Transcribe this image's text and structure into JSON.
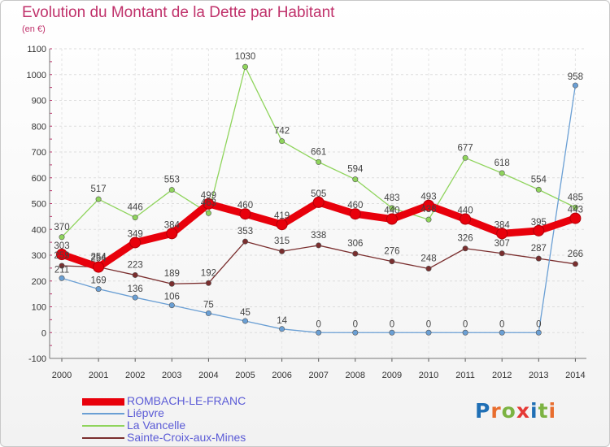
{
  "title": "Evolution du Montant de la Dette par Habitant",
  "subtitle": "(en €)",
  "logo": {
    "text": "Proxiti",
    "letter_colors": [
      "#1f6fb5",
      "#e86d2e",
      "#7cb342",
      "#e53935",
      "#1f6fb5",
      "#7cb342",
      "#e86d2e"
    ]
  },
  "chart_data": {
    "type": "line",
    "x": [
      "2000",
      "2001",
      "2002",
      "2003",
      "2004",
      "2005",
      "2006",
      "2007",
      "2008",
      "2009",
      "2010",
      "2011",
      "2012",
      "2013",
      "2014"
    ],
    "ylim": [
      -100,
      1100
    ],
    "yticks": [
      -100,
      0,
      100,
      200,
      300,
      400,
      500,
      600,
      700,
      800,
      900,
      1000,
      1100
    ],
    "grid": true,
    "legend_position": "bottom-left",
    "series": [
      {
        "name": "ROMBACH-LE-FRANC",
        "color": "#e8000b",
        "values": [
          303,
          254,
          349,
          384,
          499,
          460,
          419,
          505,
          460,
          440,
          493,
          440,
          384,
          395,
          443
        ]
      },
      {
        "name": "Liépvre",
        "color": "#6a9fd4",
        "values": [
          211,
          169,
          136,
          106,
          75,
          45,
          14,
          0,
          0,
          0,
          0,
          0,
          0,
          0,
          958
        ]
      },
      {
        "name": "La Vancelle",
        "color": "#8fd45c",
        "values": [
          370,
          517,
          446,
          553,
          463,
          1030,
          742,
          661,
          594,
          483,
          438,
          677,
          618,
          554,
          485
        ]
      },
      {
        "name": "Sainte-Croix-aux-Mines",
        "color": "#7a2e2e",
        "values": [
          259,
          254,
          223,
          189,
          192,
          353,
          315,
          338,
          306,
          276,
          248,
          326,
          307,
          287,
          266
        ]
      }
    ]
  }
}
